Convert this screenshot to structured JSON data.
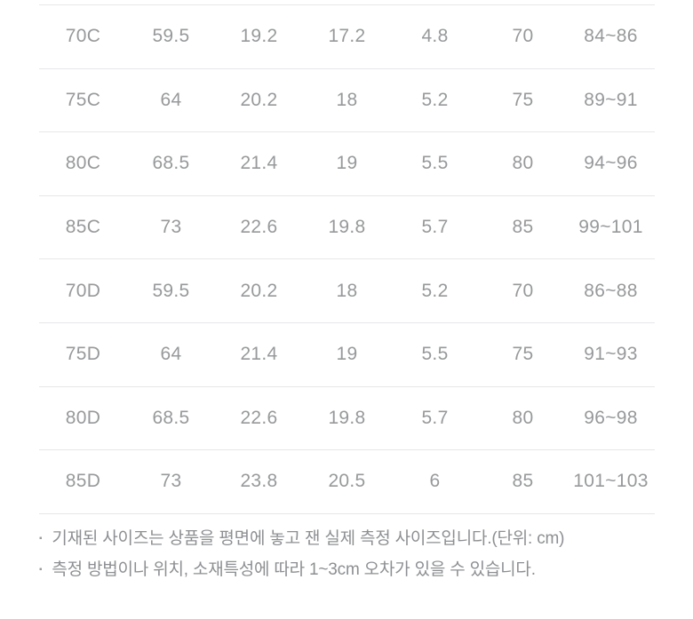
{
  "size_table": {
    "unit": "cm",
    "rows": [
      [
        "70C",
        "59.5",
        "19.2",
        "17.2",
        "4.8",
        "70",
        "84~86"
      ],
      [
        "75C",
        "64",
        "20.2",
        "18",
        "5.2",
        "75",
        "89~91"
      ],
      [
        "80C",
        "68.5",
        "21.4",
        "19",
        "5.5",
        "80",
        "94~96"
      ],
      [
        "85C",
        "73",
        "22.6",
        "19.8",
        "5.7",
        "85",
        "99~101"
      ],
      [
        "70D",
        "59.5",
        "20.2",
        "18",
        "5.2",
        "70",
        "86~88"
      ],
      [
        "75D",
        "64",
        "21.4",
        "19",
        "5.5",
        "75",
        "91~93"
      ],
      [
        "80D",
        "68.5",
        "22.6",
        "19.8",
        "5.7",
        "80",
        "96~98"
      ],
      [
        "85D",
        "73",
        "23.8",
        "20.5",
        "6",
        "85",
        "101~103"
      ]
    ]
  },
  "notes": {
    "bullet": "▪",
    "items": [
      "기재된 사이즈는 상품을 평면에 놓고 잰 실제 측정 사이즈입니다.(단위: cm)",
      "측정 방법이나 위치, 소재특성에 따라 1~3cm 오차가 있을 수 있습니다."
    ]
  },
  "colors": {
    "background": "#ffffff",
    "table_text": "#97999b",
    "divider_line": "#e7e7e9",
    "note_text": "#8d8f92"
  }
}
